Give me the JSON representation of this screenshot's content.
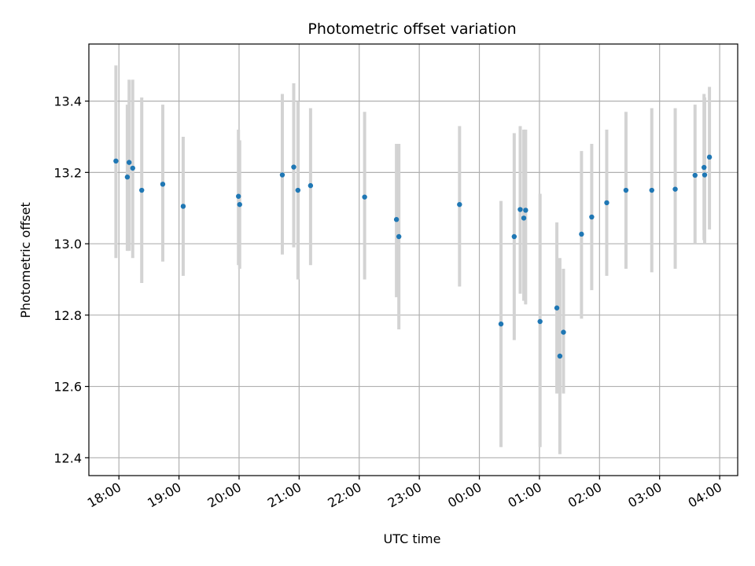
{
  "chart_data": {
    "type": "scatter",
    "title": "Photometric offset variation",
    "xlabel": "UTC time",
    "ylabel": "Photometric offset",
    "x_unit": "hours since 18:00 UTC",
    "xlim": [
      -0.5,
      10.3
    ],
    "ylim": [
      12.35,
      13.56
    ],
    "grid": true,
    "xticks": [
      {
        "value": 0,
        "label": "18:00"
      },
      {
        "value": 1,
        "label": "19:00"
      },
      {
        "value": 2,
        "label": "20:00"
      },
      {
        "value": 3,
        "label": "21:00"
      },
      {
        "value": 4,
        "label": "22:00"
      },
      {
        "value": 5,
        "label": "23:00"
      },
      {
        "value": 6,
        "label": "00:00"
      },
      {
        "value": 7,
        "label": "01:00"
      },
      {
        "value": 8,
        "label": "02:00"
      },
      {
        "value": 9,
        "label": "03:00"
      },
      {
        "value": 10,
        "label": "04:00"
      }
    ],
    "yticks": [
      {
        "value": 12.4,
        "label": "12.4"
      },
      {
        "value": 12.6,
        "label": "12.6"
      },
      {
        "value": 12.8,
        "label": "12.8"
      },
      {
        "value": 13.0,
        "label": "13.0"
      },
      {
        "value": 13.2,
        "label": "13.2"
      },
      {
        "value": 13.4,
        "label": "13.4"
      }
    ],
    "colors": {
      "marker": "#1f77b4",
      "errorbar": "#d3d3d3",
      "grid": "#b0b0b0",
      "axis": "#000000"
    },
    "series": [
      {
        "name": "Photometric offset",
        "points": [
          {
            "x": -0.05,
            "y": 13.232,
            "lo": 12.96,
            "hi": 13.5
          },
          {
            "x": 0.14,
            "y": 13.187,
            "lo": 12.98,
            "hi": 13.39
          },
          {
            "x": 0.17,
            "y": 13.228,
            "lo": 12.98,
            "hi": 13.46
          },
          {
            "x": 0.23,
            "y": 13.212,
            "lo": 12.96,
            "hi": 13.46
          },
          {
            "x": 0.38,
            "y": 13.15,
            "lo": 12.89,
            "hi": 13.41
          },
          {
            "x": 0.73,
            "y": 13.167,
            "lo": 12.95,
            "hi": 13.39
          },
          {
            "x": 1.07,
            "y": 13.105,
            "lo": 12.91,
            "hi": 13.3
          },
          {
            "x": 1.99,
            "y": 13.133,
            "lo": 12.94,
            "hi": 13.32
          },
          {
            "x": 2.01,
            "y": 13.11,
            "lo": 12.93,
            "hi": 13.29
          },
          {
            "x": 2.72,
            "y": 13.193,
            "lo": 12.97,
            "hi": 13.42
          },
          {
            "x": 2.91,
            "y": 13.215,
            "lo": 12.99,
            "hi": 13.45
          },
          {
            "x": 2.98,
            "y": 13.15,
            "lo": 12.9,
            "hi": 13.4
          },
          {
            "x": 3.19,
            "y": 13.163,
            "lo": 12.94,
            "hi": 13.38
          },
          {
            "x": 4.09,
            "y": 13.131,
            "lo": 12.9,
            "hi": 13.37
          },
          {
            "x": 4.62,
            "y": 13.068,
            "lo": 12.85,
            "hi": 13.28
          },
          {
            "x": 4.66,
            "y": 13.02,
            "lo": 12.76,
            "hi": 13.28
          },
          {
            "x": 5.67,
            "y": 13.11,
            "lo": 12.88,
            "hi": 13.33
          },
          {
            "x": 6.36,
            "y": 12.775,
            "lo": 12.43,
            "hi": 13.12
          },
          {
            "x": 6.58,
            "y": 13.02,
            "lo": 12.73,
            "hi": 13.31
          },
          {
            "x": 6.68,
            "y": 13.096,
            "lo": 12.86,
            "hi": 13.33
          },
          {
            "x": 6.74,
            "y": 13.072,
            "lo": 12.84,
            "hi": 13.32
          },
          {
            "x": 6.77,
            "y": 13.094,
            "lo": 12.83,
            "hi": 13.32
          },
          {
            "x": 7.01,
            "y": 12.782,
            "lo": 12.43,
            "hi": 13.14
          },
          {
            "x": 7.29,
            "y": 12.82,
            "lo": 12.58,
            "hi": 13.06
          },
          {
            "x": 7.34,
            "y": 12.685,
            "lo": 12.41,
            "hi": 12.96
          },
          {
            "x": 7.4,
            "y": 12.752,
            "lo": 12.58,
            "hi": 12.93
          },
          {
            "x": 7.7,
            "y": 13.027,
            "lo": 12.79,
            "hi": 13.26
          },
          {
            "x": 7.87,
            "y": 13.075,
            "lo": 12.87,
            "hi": 13.28
          },
          {
            "x": 8.12,
            "y": 13.115,
            "lo": 12.91,
            "hi": 13.32
          },
          {
            "x": 8.44,
            "y": 13.15,
            "lo": 12.93,
            "hi": 13.37
          },
          {
            "x": 8.87,
            "y": 13.15,
            "lo": 12.92,
            "hi": 13.38
          },
          {
            "x": 9.26,
            "y": 13.153,
            "lo": 12.93,
            "hi": 13.38
          },
          {
            "x": 9.59,
            "y": 13.192,
            "lo": 13.0,
            "hi": 13.39
          },
          {
            "x": 9.74,
            "y": 13.214,
            "lo": 13.01,
            "hi": 13.42
          },
          {
            "x": 9.75,
            "y": 13.193,
            "lo": 13.0,
            "hi": 13.41
          },
          {
            "x": 9.83,
            "y": 13.243,
            "lo": 13.04,
            "hi": 13.44
          }
        ]
      }
    ]
  }
}
